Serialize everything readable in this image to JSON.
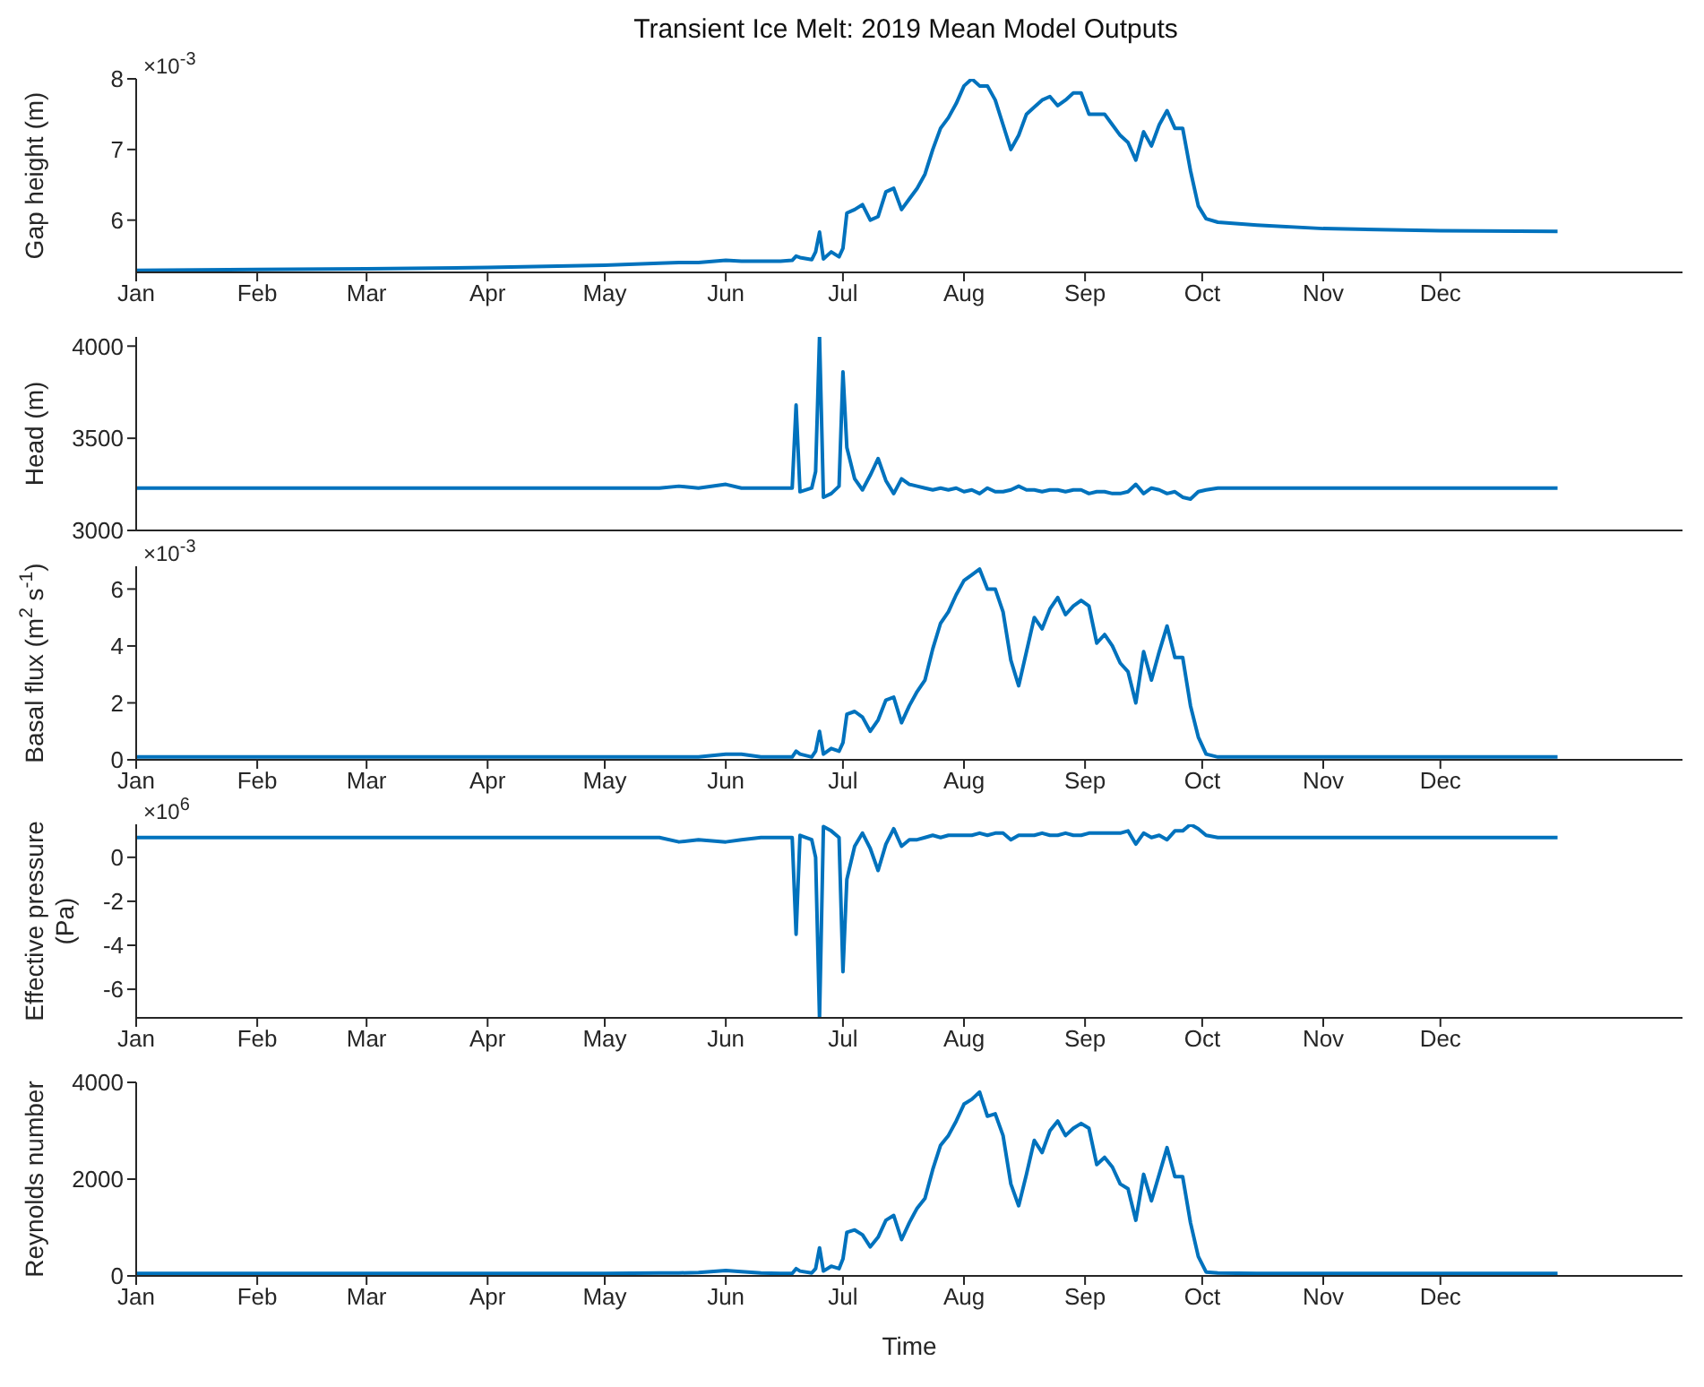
{
  "chart_data": [
    {
      "type": "line",
      "title": "Transient Ice Melt: 2019 Mean Model Outputs",
      "ylabel": "Gap height (m)",
      "annotations": [
        "×10$^{-3}$"
      ],
      "x": [
        "2019-01-01",
        "2019-02-01",
        "2019-03-01",
        "2019-04-01",
        "2019-05-01",
        "2019-05-15",
        "2019-05-20",
        "2019-05-25",
        "2019-06-01",
        "2019-06-05",
        "2019-06-10",
        "2019-06-15",
        "2019-06-18",
        "2019-06-19",
        "2019-06-20",
        "2019-06-23",
        "2019-06-24",
        "2019-06-25",
        "2019-06-26",
        "2019-06-28",
        "2019-06-30",
        "2019-07-01",
        "2019-07-02",
        "2019-07-04",
        "2019-07-06",
        "2019-07-08",
        "2019-07-10",
        "2019-07-12",
        "2019-07-14",
        "2019-07-16",
        "2019-07-18",
        "2019-07-20",
        "2019-07-22",
        "2019-07-24",
        "2019-07-26",
        "2019-07-28",
        "2019-07-30",
        "2019-08-01",
        "2019-08-03",
        "2019-08-05",
        "2019-08-07",
        "2019-08-09",
        "2019-08-11",
        "2019-08-13",
        "2019-08-15",
        "2019-08-17",
        "2019-08-19",
        "2019-08-21",
        "2019-08-23",
        "2019-08-25",
        "2019-08-27",
        "2019-08-29",
        "2019-08-31",
        "2019-09-02",
        "2019-09-04",
        "2019-09-06",
        "2019-09-08",
        "2019-09-10",
        "2019-09-12",
        "2019-09-14",
        "2019-09-16",
        "2019-09-18",
        "2019-09-20",
        "2019-09-22",
        "2019-09-24",
        "2019-09-26",
        "2019-09-28",
        "2019-09-30",
        "2019-10-02",
        "2019-10-05",
        "2019-10-15",
        "2019-11-01",
        "2019-12-01",
        "2019-12-31"
      ],
      "series": [
        {
          "color": "#0072bd",
          "values": [
            5.29,
            5.3,
            5.31,
            5.33,
            5.36,
            5.39,
            5.4,
            5.4,
            5.43,
            5.42,
            5.42,
            5.42,
            5.43,
            5.49,
            5.47,
            5.44,
            5.55,
            5.83,
            5.45,
            5.55,
            5.48,
            5.6,
            6.1,
            6.15,
            6.22,
            6.0,
            6.05,
            6.4,
            6.45,
            6.15,
            6.3,
            6.45,
            6.65,
            7.0,
            7.3,
            7.45,
            7.65,
            7.9,
            8.0,
            7.9,
            7.9,
            7.7,
            7.35,
            7.0,
            7.2,
            7.5,
            7.6,
            7.7,
            7.75,
            7.62,
            7.7,
            7.8,
            7.8,
            7.5,
            7.5,
            7.5,
            7.35,
            7.2,
            7.1,
            6.85,
            7.25,
            7.05,
            7.35,
            7.55,
            7.3,
            7.3,
            6.7,
            6.2,
            6.02,
            5.97,
            5.93,
            5.88,
            5.85,
            5.84
          ]
        }
      ],
      "xlim": [
        "2019-01-01",
        "2020-02-01"
      ],
      "xticks": [
        {
          "value": "2019-01-01",
          "label": "Jan"
        },
        {
          "value": "2019-02-01",
          "label": "Feb"
        },
        {
          "value": "2019-03-01",
          "label": "Mar"
        },
        {
          "value": "2019-04-01",
          "label": "Apr"
        },
        {
          "value": "2019-05-01",
          "label": "May"
        },
        {
          "value": "2019-06-01",
          "label": "Jun"
        },
        {
          "value": "2019-07-01",
          "label": "Jul"
        },
        {
          "value": "2019-08-01",
          "label": "Aug"
        },
        {
          "value": "2019-09-01",
          "label": "Sep"
        },
        {
          "value": "2019-10-01",
          "label": "Oct"
        },
        {
          "value": "2019-11-01",
          "label": "Nov"
        },
        {
          "value": "2019-12-01",
          "label": "Dec"
        }
      ],
      "ylim": [
        5.26,
        8
      ],
      "yticks": [
        6,
        7,
        8
      ]
    },
    {
      "type": "line",
      "ylabel": "Head (m)",
      "tick_labels": "y",
      "x": [
        "2019-01-01",
        "2019-02-01",
        "2019-03-01",
        "2019-04-01",
        "2019-05-01",
        "2019-05-15",
        "2019-05-20",
        "2019-05-25",
        "2019-06-01",
        "2019-06-05",
        "2019-06-10",
        "2019-06-15",
        "2019-06-18",
        "2019-06-19",
        "2019-06-20",
        "2019-06-23",
        "2019-06-24",
        "2019-06-25",
        "2019-06-26",
        "2019-06-28",
        "2019-06-30",
        "2019-07-01",
        "2019-07-02",
        "2019-07-04",
        "2019-07-06",
        "2019-07-08",
        "2019-07-10",
        "2019-07-12",
        "2019-07-14",
        "2019-07-16",
        "2019-07-18",
        "2019-07-20",
        "2019-07-22",
        "2019-07-24",
        "2019-07-26",
        "2019-07-28",
        "2019-07-30",
        "2019-08-01",
        "2019-08-03",
        "2019-08-05",
        "2019-08-07",
        "2019-08-09",
        "2019-08-11",
        "2019-08-13",
        "2019-08-15",
        "2019-08-17",
        "2019-08-19",
        "2019-08-21",
        "2019-08-23",
        "2019-08-25",
        "2019-08-27",
        "2019-08-29",
        "2019-08-31",
        "2019-09-02",
        "2019-09-04",
        "2019-09-06",
        "2019-09-08",
        "2019-09-10",
        "2019-09-12",
        "2019-09-14",
        "2019-09-16",
        "2019-09-18",
        "2019-09-20",
        "2019-09-22",
        "2019-09-24",
        "2019-09-26",
        "2019-09-28",
        "2019-09-30",
        "2019-10-02",
        "2019-10-05",
        "2019-10-15",
        "2019-11-01",
        "2019-12-01",
        "2019-12-31"
      ],
      "series": [
        {
          "color": "#0072bd",
          "values": [
            3230,
            3230,
            3230,
            3230,
            3230,
            3230,
            3240,
            3230,
            3250,
            3230,
            3230,
            3230,
            3230,
            3680,
            3210,
            3230,
            3320,
            4050,
            3180,
            3200,
            3240,
            3860,
            3450,
            3280,
            3220,
            3300,
            3390,
            3270,
            3200,
            3280,
            3250,
            3240,
            3230,
            3220,
            3230,
            3220,
            3230,
            3210,
            3220,
            3200,
            3230,
            3210,
            3210,
            3220,
            3240,
            3220,
            3220,
            3210,
            3220,
            3220,
            3210,
            3220,
            3220,
            3200,
            3210,
            3210,
            3200,
            3200,
            3210,
            3250,
            3200,
            3230,
            3220,
            3200,
            3210,
            3180,
            3170,
            3210,
            3220,
            3230,
            3230,
            3230,
            3230,
            3230
          ]
        }
      ],
      "xlim": [
        "2019-01-01",
        "2020-02-01"
      ],
      "xticks": [
        {
          "value": "2019-01-01",
          "label": null
        },
        {
          "value": "2019-02-01",
          "label": null
        },
        {
          "value": "2019-03-01",
          "label": null
        },
        {
          "value": "2019-04-01",
          "label": null
        },
        {
          "value": "2019-05-01",
          "label": null
        },
        {
          "value": "2019-06-01",
          "label": null
        },
        {
          "value": "2019-07-01",
          "label": null
        },
        {
          "value": "2019-08-01",
          "label": null
        },
        {
          "value": "2019-09-01",
          "label": null
        },
        {
          "value": "2019-10-01",
          "label": null
        },
        {
          "value": "2019-11-01",
          "label": null
        },
        {
          "value": "2019-12-01",
          "label": null
        }
      ],
      "ylim": [
        3000,
        4050
      ],
      "yticks": [
        3000,
        3500,
        4000
      ]
    },
    {
      "type": "line",
      "ylabel": "Basal flux (m$^{2}$ s$^{-1}$)",
      "annotations": [
        "×10$^{-3}$"
      ],
      "x": [
        "2019-01-01",
        "2019-02-01",
        "2019-03-01",
        "2019-04-01",
        "2019-05-01",
        "2019-05-15",
        "2019-05-20",
        "2019-05-25",
        "2019-06-01",
        "2019-06-05",
        "2019-06-10",
        "2019-06-15",
        "2019-06-18",
        "2019-06-19",
        "2019-06-20",
        "2019-06-23",
        "2019-06-24",
        "2019-06-25",
        "2019-06-26",
        "2019-06-28",
        "2019-06-30",
        "2019-07-01",
        "2019-07-02",
        "2019-07-04",
        "2019-07-06",
        "2019-07-08",
        "2019-07-10",
        "2019-07-12",
        "2019-07-14",
        "2019-07-16",
        "2019-07-18",
        "2019-07-20",
        "2019-07-22",
        "2019-07-24",
        "2019-07-26",
        "2019-07-28",
        "2019-07-30",
        "2019-08-01",
        "2019-08-03",
        "2019-08-05",
        "2019-08-07",
        "2019-08-09",
        "2019-08-11",
        "2019-08-13",
        "2019-08-15",
        "2019-08-17",
        "2019-08-19",
        "2019-08-21",
        "2019-08-23",
        "2019-08-25",
        "2019-08-27",
        "2019-08-29",
        "2019-08-31",
        "2019-09-02",
        "2019-09-04",
        "2019-09-06",
        "2019-09-08",
        "2019-09-10",
        "2019-09-12",
        "2019-09-14",
        "2019-09-16",
        "2019-09-18",
        "2019-09-20",
        "2019-09-22",
        "2019-09-24",
        "2019-09-26",
        "2019-09-28",
        "2019-09-30",
        "2019-10-02",
        "2019-10-05",
        "2019-10-15",
        "2019-11-01",
        "2019-12-01",
        "2019-12-31"
      ],
      "series": [
        {
          "color": "#0072bd",
          "values": [
            0.1,
            0.1,
            0.1,
            0.1,
            0.1,
            0.1,
            0.1,
            0.1,
            0.2,
            0.2,
            0.1,
            0.1,
            0.1,
            0.3,
            0.2,
            0.1,
            0.3,
            1.0,
            0.2,
            0.4,
            0.3,
            0.6,
            1.6,
            1.7,
            1.5,
            1.0,
            1.4,
            2.1,
            2.2,
            1.3,
            1.9,
            2.4,
            2.8,
            3.9,
            4.8,
            5.2,
            5.8,
            6.3,
            6.5,
            6.7,
            6.0,
            6.0,
            5.2,
            3.5,
            2.6,
            3.8,
            5.0,
            4.6,
            5.3,
            5.7,
            5.1,
            5.4,
            5.6,
            5.4,
            4.1,
            4.4,
            4.0,
            3.4,
            3.1,
            2.0,
            3.8,
            2.8,
            3.8,
            4.7,
            3.6,
            3.6,
            1.9,
            0.8,
            0.2,
            0.1,
            0.1,
            0.1,
            0.1,
            0.1
          ]
        }
      ],
      "xlim": [
        "2019-01-01",
        "2020-02-01"
      ],
      "xticks": [
        {
          "value": "2019-01-01",
          "label": "Jan"
        },
        {
          "value": "2019-02-01",
          "label": "Feb"
        },
        {
          "value": "2019-03-01",
          "label": "Mar"
        },
        {
          "value": "2019-04-01",
          "label": "Apr"
        },
        {
          "value": "2019-05-01",
          "label": "May"
        },
        {
          "value": "2019-06-01",
          "label": "Jun"
        },
        {
          "value": "2019-07-01",
          "label": "Jul"
        },
        {
          "value": "2019-08-01",
          "label": "Aug"
        },
        {
          "value": "2019-09-01",
          "label": "Sep"
        },
        {
          "value": "2019-10-01",
          "label": "Oct"
        },
        {
          "value": "2019-11-01",
          "label": "Nov"
        },
        {
          "value": "2019-12-01",
          "label": "Dec"
        }
      ],
      "ylim": [
        0,
        6.8
      ],
      "yticks": [
        0,
        2,
        4,
        6
      ]
    },
    {
      "type": "line",
      "ylabel": "Effective pressure (Pa)",
      "annotations": [
        "×10$^{6}$"
      ],
      "x": [
        "2019-01-01",
        "2019-02-01",
        "2019-03-01",
        "2019-04-01",
        "2019-05-01",
        "2019-05-15",
        "2019-05-20",
        "2019-05-25",
        "2019-06-01",
        "2019-06-05",
        "2019-06-10",
        "2019-06-15",
        "2019-06-18",
        "2019-06-19",
        "2019-06-20",
        "2019-06-23",
        "2019-06-24",
        "2019-06-25",
        "2019-06-26",
        "2019-06-28",
        "2019-06-30",
        "2019-07-01",
        "2019-07-02",
        "2019-07-04",
        "2019-07-06",
        "2019-07-08",
        "2019-07-10",
        "2019-07-12",
        "2019-07-14",
        "2019-07-16",
        "2019-07-18",
        "2019-07-20",
        "2019-07-22",
        "2019-07-24",
        "2019-07-26",
        "2019-07-28",
        "2019-07-30",
        "2019-08-01",
        "2019-08-03",
        "2019-08-05",
        "2019-08-07",
        "2019-08-09",
        "2019-08-11",
        "2019-08-13",
        "2019-08-15",
        "2019-08-17",
        "2019-08-19",
        "2019-08-21",
        "2019-08-23",
        "2019-08-25",
        "2019-08-27",
        "2019-08-29",
        "2019-08-31",
        "2019-09-02",
        "2019-09-04",
        "2019-09-06",
        "2019-09-08",
        "2019-09-10",
        "2019-09-12",
        "2019-09-14",
        "2019-09-16",
        "2019-09-18",
        "2019-09-20",
        "2019-09-22",
        "2019-09-24",
        "2019-09-26",
        "2019-09-28",
        "2019-09-30",
        "2019-10-02",
        "2019-10-05",
        "2019-10-15",
        "2019-11-01",
        "2019-12-01",
        "2019-12-31"
      ],
      "series": [
        {
          "color": "#0072bd",
          "values": [
            0.9,
            0.9,
            0.9,
            0.9,
            0.9,
            0.9,
            0.7,
            0.8,
            0.7,
            0.8,
            0.9,
            0.9,
            0.9,
            -3.5,
            1.0,
            0.8,
            0.0,
            -7.3,
            1.4,
            1.2,
            0.9,
            -5.2,
            -1.0,
            0.5,
            1.1,
            0.4,
            -0.6,
            0.6,
            1.3,
            0.5,
            0.8,
            0.8,
            0.9,
            1.0,
            0.9,
            1.0,
            1.0,
            1.0,
            1.0,
            1.1,
            1.0,
            1.1,
            1.1,
            0.8,
            1.0,
            1.0,
            1.0,
            1.1,
            1.0,
            1.0,
            1.1,
            1.0,
            1.0,
            1.1,
            1.1,
            1.1,
            1.1,
            1.1,
            1.2,
            0.6,
            1.1,
            0.9,
            1.0,
            0.8,
            1.2,
            1.2,
            1.5,
            1.3,
            1.0,
            0.9,
            0.9,
            0.9,
            0.9,
            0.9
          ]
        }
      ],
      "xlim": [
        "2019-01-01",
        "2020-02-01"
      ],
      "xticks": [
        {
          "value": "2019-01-01",
          "label": "Jan"
        },
        {
          "value": "2019-02-01",
          "label": "Feb"
        },
        {
          "value": "2019-03-01",
          "label": "Mar"
        },
        {
          "value": "2019-04-01",
          "label": "Apr"
        },
        {
          "value": "2019-05-01",
          "label": "May"
        },
        {
          "value": "2019-06-01",
          "label": "Jun"
        },
        {
          "value": "2019-07-01",
          "label": "Jul"
        },
        {
          "value": "2019-08-01",
          "label": "Aug"
        },
        {
          "value": "2019-09-01",
          "label": "Sep"
        },
        {
          "value": "2019-10-01",
          "label": "Oct"
        },
        {
          "value": "2019-11-01",
          "label": "Nov"
        },
        {
          "value": "2019-12-01",
          "label": "Dec"
        }
      ],
      "ylim": [
        -7.3,
        1.5
      ],
      "yticks": [
        -6,
        -4,
        -2,
        0
      ]
    },
    {
      "type": "line",
      "ylabel": "Reynolds number",
      "xlabel": "Time",
      "x": [
        "2019-01-01",
        "2019-02-01",
        "2019-03-01",
        "2019-04-01",
        "2019-05-01",
        "2019-05-15",
        "2019-05-20",
        "2019-05-25",
        "2019-06-01",
        "2019-06-05",
        "2019-06-10",
        "2019-06-15",
        "2019-06-18",
        "2019-06-19",
        "2019-06-20",
        "2019-06-23",
        "2019-06-24",
        "2019-06-25",
        "2019-06-26",
        "2019-06-28",
        "2019-06-30",
        "2019-07-01",
        "2019-07-02",
        "2019-07-04",
        "2019-07-06",
        "2019-07-08",
        "2019-07-10",
        "2019-07-12",
        "2019-07-14",
        "2019-07-16",
        "2019-07-18",
        "2019-07-20",
        "2019-07-22",
        "2019-07-24",
        "2019-07-26",
        "2019-07-28",
        "2019-07-30",
        "2019-08-01",
        "2019-08-03",
        "2019-08-05",
        "2019-08-07",
        "2019-08-09",
        "2019-08-11",
        "2019-08-13",
        "2019-08-15",
        "2019-08-17",
        "2019-08-19",
        "2019-08-21",
        "2019-08-23",
        "2019-08-25",
        "2019-08-27",
        "2019-08-29",
        "2019-08-31",
        "2019-09-02",
        "2019-09-04",
        "2019-09-06",
        "2019-09-08",
        "2019-09-10",
        "2019-09-12",
        "2019-09-14",
        "2019-09-16",
        "2019-09-18",
        "2019-09-20",
        "2019-09-22",
        "2019-09-24",
        "2019-09-26",
        "2019-09-28",
        "2019-09-30",
        "2019-10-02",
        "2019-10-05",
        "2019-10-15",
        "2019-11-01",
        "2019-12-01",
        "2019-12-31"
      ],
      "series": [
        {
          "color": "#0072bd",
          "values": [
            50,
            50,
            50,
            50,
            50,
            60,
            60,
            70,
            110,
            90,
            60,
            50,
            50,
            150,
            100,
            60,
            150,
            580,
            100,
            200,
            150,
            350,
            900,
            950,
            850,
            600,
            800,
            1150,
            1250,
            750,
            1100,
            1400,
            1600,
            2200,
            2700,
            2900,
            3200,
            3550,
            3650,
            3800,
            3300,
            3350,
            2900,
            1900,
            1450,
            2100,
            2800,
            2550,
            3000,
            3200,
            2900,
            3050,
            3150,
            3050,
            2300,
            2450,
            2250,
            1900,
            1800,
            1150,
            2100,
            1550,
            2100,
            2650,
            2050,
            2050,
            1100,
            400,
            80,
            60,
            50,
            50,
            50,
            50
          ]
        }
      ],
      "xlim": [
        "2019-01-01",
        "2020-02-01"
      ],
      "xticks": [
        {
          "value": "2019-01-01",
          "label": "Jan"
        },
        {
          "value": "2019-02-01",
          "label": "Feb"
        },
        {
          "value": "2019-03-01",
          "label": "Mar"
        },
        {
          "value": "2019-04-01",
          "label": "Apr"
        },
        {
          "value": "2019-05-01",
          "label": "May"
        },
        {
          "value": "2019-06-01",
          "label": "Jun"
        },
        {
          "value": "2019-07-01",
          "label": "Jul"
        },
        {
          "value": "2019-08-01",
          "label": "Aug"
        },
        {
          "value": "2019-09-01",
          "label": "Sep"
        },
        {
          "value": "2019-10-01",
          "label": "Oct"
        },
        {
          "value": "2019-11-01",
          "label": "Nov"
        },
        {
          "value": "2019-12-01",
          "label": "Dec"
        }
      ],
      "ylim": [
        0,
        4000
      ],
      "yticks": [
        0,
        2000,
        4000
      ]
    }
  ]
}
